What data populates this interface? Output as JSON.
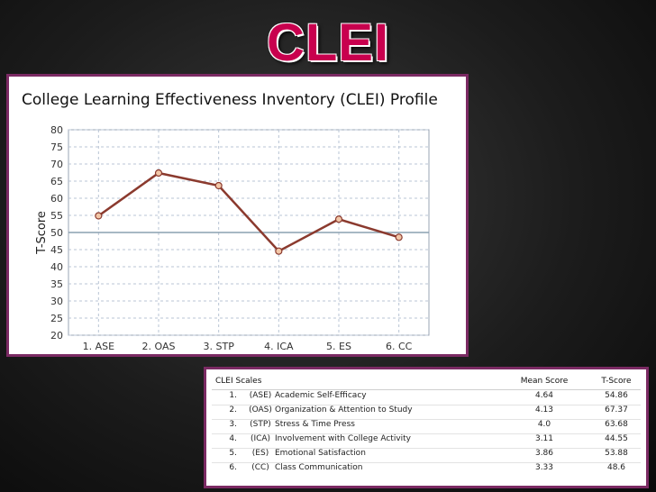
{
  "slide": {
    "title": "CLEI"
  },
  "chart_data": {
    "type": "line",
    "title": "College Learning Effectiveness Inventory (CLEI) Profile",
    "ylabel": "T-Score",
    "xlabel": "",
    "categories": [
      "1. ASE",
      "2. OAS",
      "3. STP",
      "4. ICA",
      "5. ES",
      "6. CC"
    ],
    "series": [
      {
        "name": "T-Score",
        "values": [
          54.86,
          67.37,
          63.68,
          44.55,
          53.88,
          48.6
        ]
      }
    ],
    "ylim": [
      20,
      80
    ],
    "yticks": [
      20,
      25,
      30,
      35,
      40,
      45,
      50,
      55,
      60,
      65,
      70,
      75,
      80
    ],
    "reference_line": 50,
    "grid": true,
    "colors": {
      "line": "#8b3a2e",
      "marker_fill": "#f2c7a8",
      "grid": "#b8c4d4",
      "reference": "#8aa0b0"
    }
  },
  "table": {
    "headers": {
      "scales": "CLEI Scales",
      "mean": "Mean Score",
      "tscore": "T-Score"
    },
    "rows": [
      {
        "num": "1.",
        "abbr": "(ASE)",
        "name": "Academic Self-Efficacy",
        "mean": "4.64",
        "tscore": "54.86"
      },
      {
        "num": "2.",
        "abbr": "(OAS)",
        "name": "Organization & Attention to Study",
        "mean": "4.13",
        "tscore": "67.37"
      },
      {
        "num": "3.",
        "abbr": "(STP)",
        "name": "Stress & Time Press",
        "mean": "4.0",
        "tscore": "63.68"
      },
      {
        "num": "4.",
        "abbr": "(ICA)",
        "name": "Involvement with College Activity",
        "mean": "3.11",
        "tscore": "44.55"
      },
      {
        "num": "5.",
        "abbr": "(ES)",
        "name": "Emotional Satisfaction",
        "mean": "3.86",
        "tscore": "53.88"
      },
      {
        "num": "6.",
        "abbr": "(CC)",
        "name": "Class Communication",
        "mean": "3.33",
        "tscore": "48.6"
      }
    ]
  }
}
